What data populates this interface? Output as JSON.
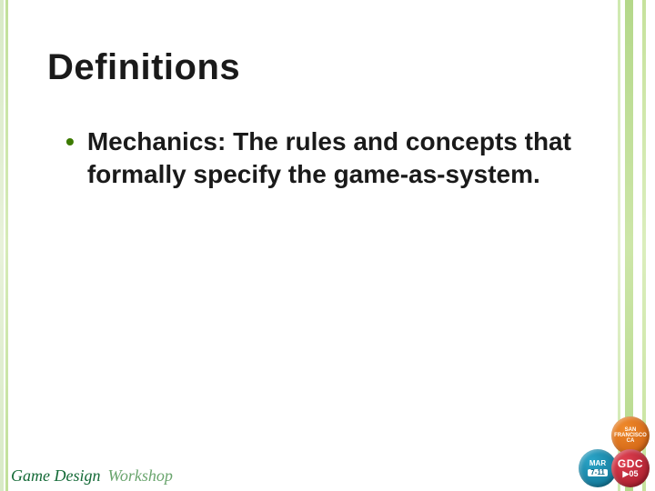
{
  "title": "Definitions",
  "bullets": [
    {
      "term": "Mechanics:",
      "def": " The rules and concepts that formally specify the game-as-system."
    }
  ],
  "footer": {
    "brand1": "Game Design",
    "brand2": "Workshop"
  },
  "badges": {
    "top": {
      "l1": "SAN",
      "l2": "FRANCISCO",
      "l3": "CA"
    },
    "left": {
      "l1": "MAR",
      "l2": "7-11"
    },
    "right": {
      "l1": "GDC",
      "l2": "▶05"
    }
  },
  "colors": {
    "bullet_accent": "#3c7a00",
    "title_color": "#1a1a1a",
    "footer_brand1": "#146a37",
    "footer_brand2": "#6aa56e"
  }
}
